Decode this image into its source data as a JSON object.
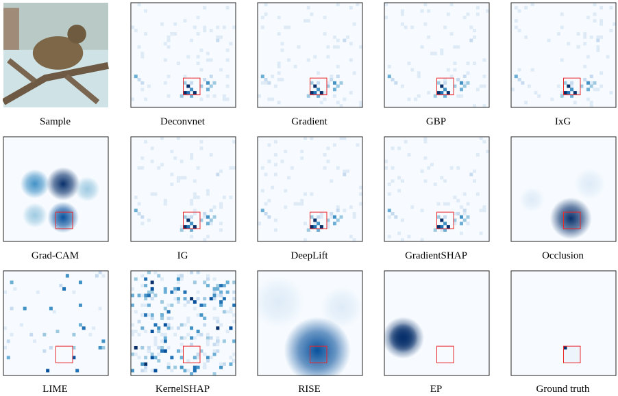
{
  "panels": [
    {
      "caption": "Sample"
    },
    {
      "caption": "Deconvnet"
    },
    {
      "caption": "Gradient"
    },
    {
      "caption": "GBP"
    },
    {
      "caption": "IxG"
    },
    {
      "caption": "Grad-CAM"
    },
    {
      "caption": "IG"
    },
    {
      "caption": "DeepLift"
    },
    {
      "caption": "GradientSHAP"
    },
    {
      "caption": "Occlusion"
    },
    {
      "caption": "LIME"
    },
    {
      "caption": "KernelSHAP"
    },
    {
      "caption": "RISE"
    },
    {
      "caption": "EP"
    },
    {
      "caption": "Ground truth"
    }
  ]
}
